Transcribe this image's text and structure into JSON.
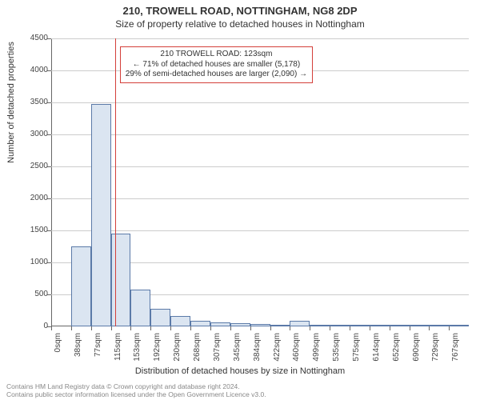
{
  "header": {
    "title": "210, TROWELL ROAD, NOTTINGHAM, NG8 2DP",
    "subtitle": "Size of property relative to detached houses in Nottingham"
  },
  "chart": {
    "type": "histogram",
    "ylabel": "Number of detached properties",
    "xlabel": "Distribution of detached houses by size in Nottingham",
    "ylim_max": 4500,
    "ytick_step": 500,
    "yticks": [
      0,
      500,
      1000,
      1500,
      2000,
      2500,
      3000,
      3500,
      4000,
      4500
    ],
    "xticks": [
      "0sqm",
      "38sqm",
      "77sqm",
      "115sqm",
      "153sqm",
      "192sqm",
      "230sqm",
      "268sqm",
      "307sqm",
      "345sqm",
      "384sqm",
      "422sqm",
      "460sqm",
      "499sqm",
      "535sqm",
      "575sqm",
      "614sqm",
      "652sqm",
      "690sqm",
      "729sqm",
      "767sqm"
    ],
    "bars": {
      "bin_width_sqm": 38.35,
      "xmax_sqm": 805,
      "values": [
        0,
        1250,
        3480,
        1450,
        570,
        280,
        160,
        90,
        60,
        50,
        40,
        30,
        90,
        15,
        10,
        10,
        5,
        5,
        5,
        5,
        5
      ],
      "fill_color": "#dbe5f1",
      "border_color": "#5b7aa8"
    },
    "reference_line": {
      "value_sqm": 123,
      "color": "#d43f3a"
    },
    "callout": {
      "line1": "210 TROWELL ROAD: 123sqm",
      "line2": "← 71% of detached houses are smaller (5,178)",
      "line3": "29% of semi-detached houses are larger (2,090) →"
    },
    "background_color": "#ffffff",
    "grid_color": "#cccccc",
    "axis_color": "#666666"
  },
  "footer": {
    "line1": "Contains HM Land Registry data © Crown copyright and database right 2024.",
    "line2": "Contains public sector information licensed under the Open Government Licence v3.0."
  }
}
